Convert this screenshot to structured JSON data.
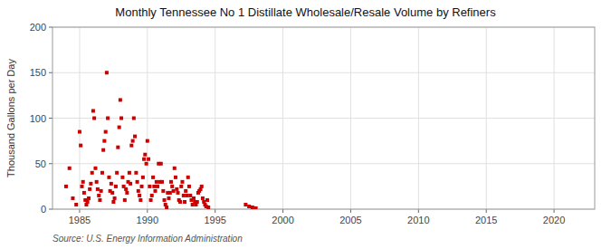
{
  "chart_data": {
    "type": "scatter",
    "title": "Monthly Tennessee No 1 Distillate Wholesale/Resale Volume by Refiners",
    "y_label": "Thousand Gallons per Day",
    "annotations": [
      "Source: U.S. Energy Information Administration"
    ],
    "color": "#cc0000",
    "marker": "square",
    "grid": true,
    "xlim": [
      1983.0,
      2023.0
    ],
    "ylim": [
      0,
      200
    ],
    "xticks": [
      1985,
      1990,
      1995,
      2000,
      2005,
      2010,
      2015,
      2020
    ],
    "yticks": [
      0,
      50,
      100,
      150,
      200
    ],
    "x": [
      1984.0,
      1984.25,
      1984.5,
      1984.75,
      1985.0,
      1985.08,
      1985.17,
      1985.25,
      1985.33,
      1985.42,
      1985.5,
      1985.58,
      1985.67,
      1985.75,
      1985.83,
      1985.92,
      1986.0,
      1986.08,
      1986.17,
      1986.25,
      1986.33,
      1986.42,
      1986.5,
      1986.58,
      1986.67,
      1986.75,
      1986.83,
      1986.92,
      1987.0,
      1987.08,
      1987.17,
      1987.25,
      1987.33,
      1987.42,
      1987.5,
      1987.58,
      1987.67,
      1987.75,
      1987.83,
      1987.92,
      1988.0,
      1988.08,
      1988.17,
      1988.25,
      1988.33,
      1988.42,
      1988.5,
      1988.58,
      1988.67,
      1988.75,
      1988.83,
      1988.92,
      1989.0,
      1989.08,
      1989.17,
      1989.25,
      1989.33,
      1989.42,
      1989.5,
      1989.58,
      1989.67,
      1989.75,
      1989.83,
      1989.92,
      1990.0,
      1990.08,
      1990.17,
      1990.25,
      1990.33,
      1990.42,
      1990.5,
      1990.58,
      1990.67,
      1990.75,
      1990.83,
      1990.92,
      1991.0,
      1991.08,
      1991.17,
      1991.25,
      1991.33,
      1991.42,
      1991.5,
      1991.58,
      1991.67,
      1991.75,
      1991.83,
      1991.92,
      1992.0,
      1992.08,
      1992.17,
      1992.25,
      1992.33,
      1992.42,
      1992.5,
      1992.58,
      1992.67,
      1992.75,
      1992.83,
      1992.92,
      1993.0,
      1993.08,
      1993.17,
      1993.25,
      1993.33,
      1993.42,
      1993.5,
      1993.58,
      1993.67,
      1993.75,
      1993.83,
      1993.92,
      1994.0,
      1994.08,
      1994.17,
      1994.25,
      1994.33,
      1994.42,
      1994.5,
      1997.25,
      1997.5,
      1997.75,
      1998.0
    ],
    "values": [
      25,
      45,
      12,
      5,
      85,
      70,
      25,
      30,
      18,
      10,
      5,
      8,
      12,
      22,
      28,
      40,
      108,
      100,
      45,
      30,
      22,
      15,
      10,
      20,
      40,
      65,
      75,
      85,
      150,
      100,
      35,
      20,
      28,
      18,
      8,
      12,
      25,
      40,
      68,
      90,
      120,
      100,
      35,
      25,
      10,
      22,
      18,
      30,
      40,
      28,
      70,
      75,
      100,
      80,
      40,
      30,
      20,
      15,
      10,
      25,
      35,
      55,
      60,
      50,
      75,
      55,
      25,
      10,
      15,
      35,
      25,
      20,
      30,
      25,
      50,
      30,
      50,
      30,
      20,
      10,
      5,
      2,
      18,
      12,
      18,
      30,
      25,
      20,
      45,
      35,
      22,
      18,
      10,
      8,
      25,
      30,
      15,
      8,
      20,
      15,
      35,
      25,
      15,
      10,
      5,
      12,
      8,
      5,
      8,
      18,
      20,
      22,
      25,
      12,
      8,
      5,
      3,
      10,
      2,
      5,
      3,
      2,
      1
    ]
  }
}
